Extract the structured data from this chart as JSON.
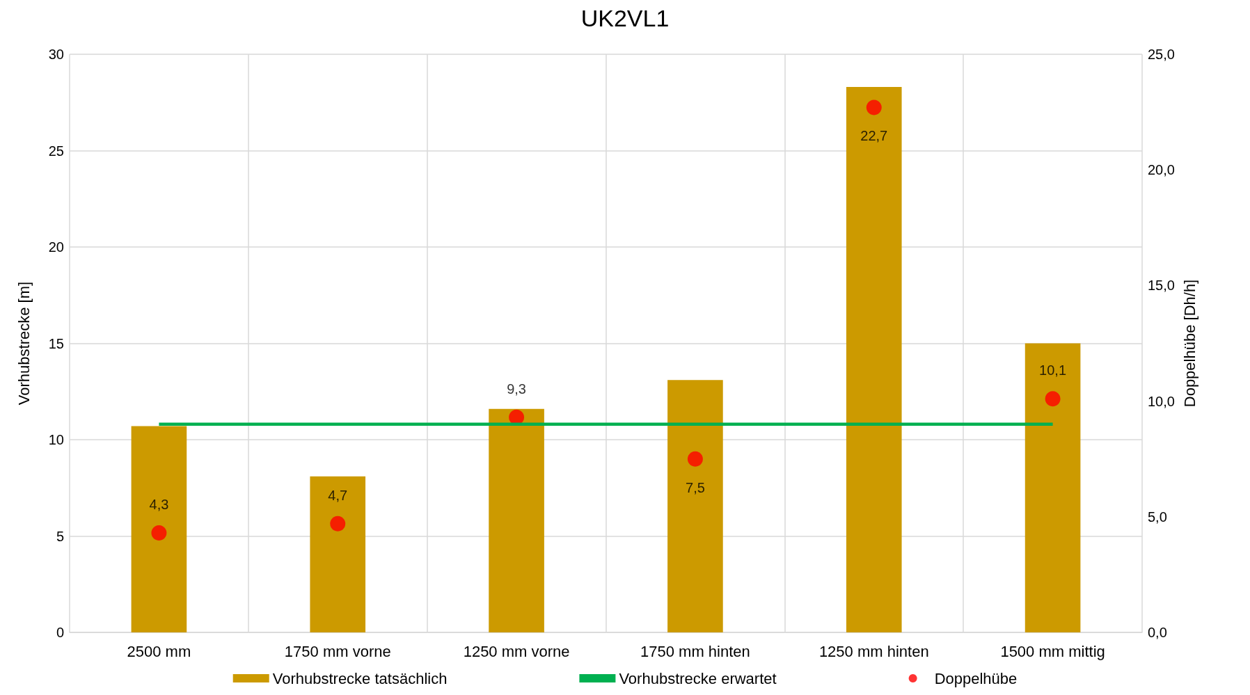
{
  "chart_data": {
    "type": "bar",
    "title": "UK2VL1",
    "ylabel": "Vorhubstrecke [m]",
    "y2label": "Doppelhübe [Dh/h]",
    "categories": [
      "2500 mm",
      "1750 mm vorne",
      "1250 mm vorne",
      "1750 mm hinten",
      "1250 mm hinten",
      "1500 mm mittig"
    ],
    "series": [
      {
        "name": "Vorhubstrecke tatsächlich",
        "color": "#cc9a00",
        "values": [
          10.7,
          8.1,
          11.6,
          13.1,
          28.3,
          15.0
        ]
      },
      {
        "name": "Vorhubstrecke erwartet",
        "type": "line",
        "color": "#00b050",
        "marker": "none",
        "values": [
          10.8,
          10.8,
          10.8,
          10.8,
          10.8,
          10.8
        ]
      },
      {
        "name": "Doppelhübe",
        "type": "scatter",
        "color": "#ff0000",
        "marker": "circle",
        "axis": "y2",
        "data_labels": true,
        "value_labels": [
          "4,3",
          "4,7",
          "9,3",
          "7,5",
          "22,7",
          "10,1"
        ],
        "values": [
          4.3,
          4.7,
          9.3,
          7.5,
          22.7,
          10.1
        ]
      }
    ],
    "ylim": [
      0,
      30
    ],
    "yticks": [
      0,
      5,
      10,
      15,
      20,
      25,
      30
    ],
    "y2lim": [
      0,
      25
    ],
    "y2ticks": [
      {
        "value": 0,
        "label": "0,0"
      },
      {
        "value": 5,
        "label": "5,0"
      },
      {
        "value": 10,
        "label": "10,0"
      },
      {
        "value": 15,
        "label": "15,0"
      },
      {
        "value": 20,
        "label": "20,0"
      },
      {
        "value": 25,
        "label": "25,0"
      }
    ],
    "grid": true,
    "legend": "bottom"
  }
}
